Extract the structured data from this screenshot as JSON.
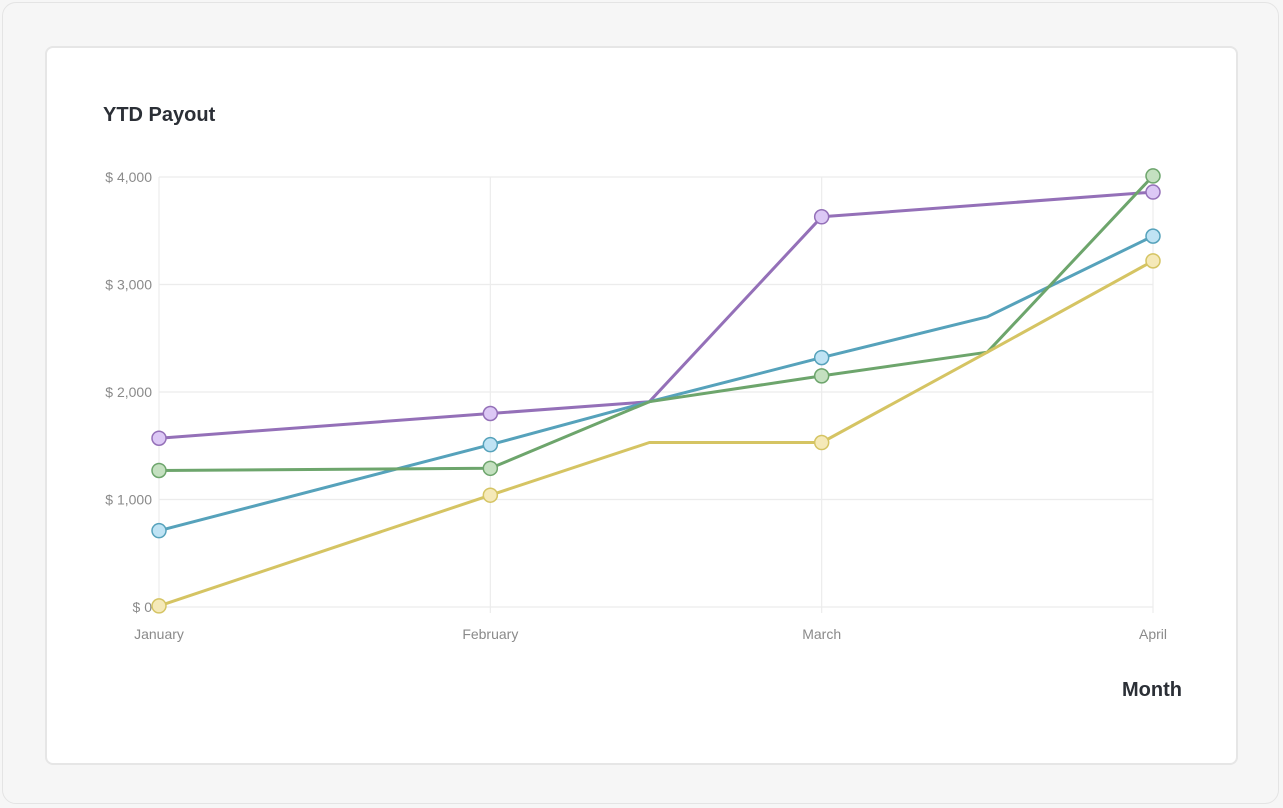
{
  "chart_data": {
    "type": "line",
    "title": "YTD Payout",
    "xlabel": "Month",
    "ylabel": "",
    "categories": [
      "January",
      "February",
      "March",
      "April"
    ],
    "ylim": [
      0,
      4000
    ],
    "yticks": [
      0,
      1000,
      2000,
      3000,
      4000
    ],
    "ytick_labels": [
      "$ 0",
      "$ 1,000",
      "$ 2,000",
      "$ 3,000",
      "$ 4,000"
    ],
    "grid": true,
    "legend": "none",
    "series": [
      {
        "color": "#9470b8",
        "marker_fill": "#dcc8f5",
        "points": [
          [
            0,
            1570
          ],
          [
            1,
            1800
          ],
          [
            1.48,
            1910
          ],
          [
            2,
            3630
          ],
          [
            3,
            3860
          ]
        ],
        "marked": [
          0,
          1,
          3,
          4
        ]
      },
      {
        "color": "#56a2bb",
        "marker_fill": "#bfe3f4",
        "points": [
          [
            0,
            710
          ],
          [
            1,
            1510
          ],
          [
            1.48,
            1910
          ],
          [
            2,
            2320
          ],
          [
            2.5,
            2700
          ],
          [
            3,
            3450
          ]
        ],
        "marked": [
          0,
          1,
          3,
          5
        ]
      },
      {
        "color": "#6da56c",
        "marker_fill": "#c4e0c0",
        "points": [
          [
            0,
            1270
          ],
          [
            1,
            1290
          ],
          [
            1.48,
            1910
          ],
          [
            2,
            2150
          ],
          [
            2.5,
            2370
          ],
          [
            3,
            4010
          ]
        ],
        "marked": [
          0,
          1,
          3,
          5
        ]
      },
      {
        "color": "#d5c463",
        "marker_fill": "#f5e9b8",
        "points": [
          [
            0,
            10
          ],
          [
            1,
            1040
          ],
          [
            1.48,
            1530
          ],
          [
            2,
            1530
          ],
          [
            2.5,
            2370
          ],
          [
            3,
            3220
          ]
        ],
        "marked": [
          0,
          1,
          3,
          5
        ]
      }
    ]
  }
}
